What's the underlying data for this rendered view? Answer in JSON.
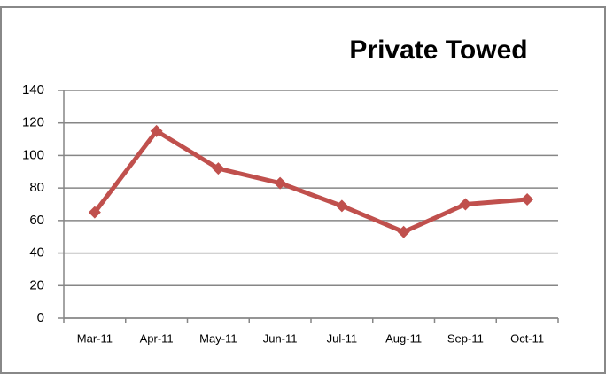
{
  "chart_data": {
    "type": "line",
    "title": "Private Towed",
    "categories": [
      "Mar-11",
      "Apr-11",
      "May-11",
      "Jun-11",
      "Jul-11",
      "Aug-11",
      "Sep-11",
      "Oct-11"
    ],
    "series": [
      {
        "name": "Private Towed",
        "color": "#c0504d",
        "values": [
          65,
          115,
          92,
          83,
          69,
          53,
          70,
          73
        ]
      }
    ],
    "ylim": [
      0,
      140
    ],
    "yticks": [
      0,
      20,
      40,
      60,
      80,
      100,
      120,
      140
    ],
    "grid": true
  }
}
